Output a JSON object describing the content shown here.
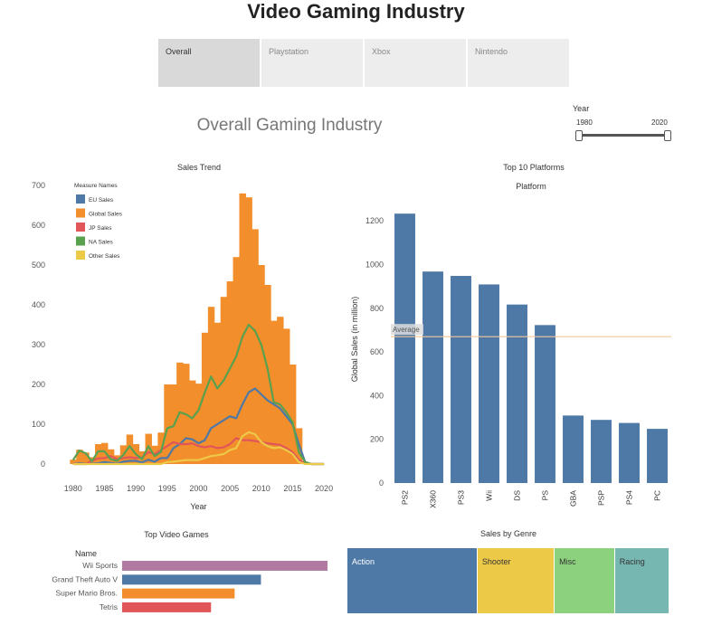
{
  "header": {
    "title": "Video Gaming Industry",
    "tabs": [
      {
        "label": "Overall",
        "active": true
      },
      {
        "label": "Playstation",
        "active": false
      },
      {
        "label": "Xbox",
        "active": false
      },
      {
        "label": "Nintendo",
        "active": false
      }
    ],
    "subtitle": "Overall Gaming Industry"
  },
  "filter": {
    "label": "Year",
    "min": "1980",
    "max": "2020"
  },
  "chart_data": [
    {
      "type": "area",
      "title": "Sales Trend",
      "xlabel": "Year",
      "ylabel": "",
      "xlim": [
        1977,
        2021
      ],
      "ylim": [
        0,
        700
      ],
      "xticks": [
        "1980",
        "1985",
        "1990",
        "1995",
        "2000",
        "2005",
        "2010",
        "2015",
        "2020"
      ],
      "yticks": [
        "0",
        "100",
        "200",
        "300",
        "400",
        "500",
        "600",
        "700"
      ],
      "legend_title": "Measure Names",
      "legend_position": "top-left",
      "x": [
        1980,
        1981,
        1982,
        1983,
        1984,
        1985,
        1986,
        1987,
        1988,
        1989,
        1990,
        1991,
        1992,
        1993,
        1994,
        1995,
        1996,
        1997,
        1998,
        1999,
        2000,
        2001,
        2002,
        2003,
        2004,
        2005,
        2006,
        2007,
        2008,
        2009,
        2010,
        2011,
        2012,
        2013,
        2014,
        2015,
        2016,
        2017,
        2018,
        2019,
        2020
      ],
      "series": [
        {
          "name": "EU Sales",
          "color": "#4e79a7",
          "kind": "line",
          "values": [
            0.5,
            2,
            1,
            1,
            2,
            5,
            3,
            1,
            6,
            8,
            8,
            4,
            11,
            6,
            15,
            15,
            40,
            50,
            65,
            62,
            52,
            60,
            90,
            100,
            110,
            120,
            115,
            150,
            180,
            190,
            175,
            160,
            150,
            140,
            120,
            100,
            50,
            5,
            0,
            0,
            0
          ]
        },
        {
          "name": "Global Sales",
          "color": "#f28e2b",
          "kind": "area",
          "values": [
            11,
            36,
            29,
            17,
            50,
            53,
            37,
            22,
            47,
            74,
            50,
            32,
            76,
            46,
            79,
            200,
            200,
            255,
            252,
            210,
            202,
            330,
            395,
            355,
            420,
            459,
            520,
            680,
            670,
            590,
            500,
            450,
            360,
            370,
            340,
            250,
            90,
            5,
            0,
            0,
            0
          ]
        },
        {
          "name": "JP Sales",
          "color": "#e15759",
          "kind": "line",
          "values": [
            0,
            0,
            0,
            8,
            14,
            15,
            20,
            12,
            15,
            17,
            15,
            17,
            30,
            25,
            35,
            45,
            55,
            50,
            50,
            52,
            45,
            42,
            45,
            40,
            42,
            50,
            65,
            60,
            60,
            58,
            55,
            52,
            50,
            48,
            40,
            30,
            10,
            2,
            0,
            0,
            0
          ]
        },
        {
          "name": "NA Sales",
          "color": "#59a14f",
          "kind": "line",
          "values": [
            10,
            34,
            27,
            7,
            32,
            32,
            12,
            8,
            23,
            45,
            25,
            12,
            45,
            20,
            30,
            90,
            95,
            130,
            125,
            115,
            135,
            180,
            220,
            190,
            210,
            240,
            270,
            320,
            350,
            335,
            300,
            240,
            155,
            150,
            130,
            105,
            30,
            5,
            0,
            0,
            0
          ]
        },
        {
          "name": "Other Sales",
          "color": "#edc948",
          "kind": "line",
          "values": [
            0,
            0,
            0,
            0,
            0,
            0,
            0,
            0,
            0,
            0,
            0,
            0,
            0,
            0,
            0,
            5,
            6,
            8,
            10,
            10,
            10,
            15,
            20,
            22,
            25,
            35,
            40,
            70,
            80,
            75,
            55,
            45,
            40,
            42,
            35,
            25,
            5,
            0,
            0,
            0,
            0
          ]
        }
      ]
    },
    {
      "type": "bar",
      "title": "Top 10 Platforms",
      "header": "Platform",
      "ylabel": "Global Sales (in million)",
      "ylim": [
        0,
        1300
      ],
      "yticks": [
        "0",
        "200",
        "400",
        "600",
        "800",
        "1000",
        "1200"
      ],
      "categories": [
        "PS2",
        "X360",
        "PS3",
        "Wii",
        "DS",
        "PS",
        "GBA",
        "PSP",
        "PS4",
        "PC"
      ],
      "values": [
        1233,
        968,
        948,
        909,
        817,
        723,
        309,
        289,
        275,
        248
      ],
      "reference_line": {
        "label": "Average",
        "value": 670
      },
      "color": "#4e79a7"
    },
    {
      "type": "bar",
      "orientation": "horizontal",
      "title": "Top Video Games",
      "header": "Name",
      "categories": [
        "Wii Sports",
        "Grand Theft Auto V",
        "Super Mario Bros.",
        "Tetris"
      ],
      "values": [
        82.7,
        55.9,
        45.3,
        35.8
      ],
      "colors": [
        "#b07aa1",
        "#4e79a7",
        "#f28e2b",
        "#e15759"
      ]
    },
    {
      "type": "treemap",
      "title": "Sales by Genre",
      "categories": [
        "Action",
        "Shooter",
        "Misc",
        "Racing"
      ],
      "values": [
        1751,
        1037,
        810,
        733
      ],
      "colors": [
        "#4e79a7",
        "#edc948",
        "#8cd17d",
        "#76b7b2"
      ]
    }
  ]
}
